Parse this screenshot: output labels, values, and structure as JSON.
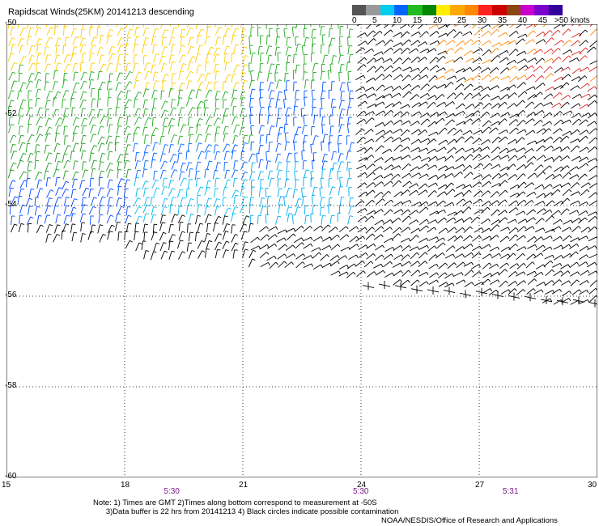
{
  "title": "Rapidscat Winds(25KM) 20141213 descending",
  "colorbar": {
    "colors": [
      "#555555",
      "#999999",
      "#00ccee",
      "#0066ff",
      "#22bb22",
      "#008800",
      "#ffee00",
      "#ffaa00",
      "#ff8800",
      "#ff2222",
      "#cc0000",
      "#8b4513",
      "#cc00cc",
      "#7a00cc",
      "#330099"
    ],
    "labels": [
      "0",
      "5",
      "10",
      "15",
      "20",
      "25",
      "30",
      "35",
      "40",
      "45",
      ">50 knots"
    ]
  },
  "map": {
    "lat_labels": [
      "-50",
      "-52",
      "-54",
      "-56",
      "-58",
      "-60"
    ],
    "lat_values": [
      -50,
      -52,
      -54,
      -56,
      -58,
      -60
    ],
    "lon_labels": [
      "15",
      "18",
      "21",
      "24",
      "27",
      "30"
    ],
    "lon_values": [
      15,
      18,
      21,
      24,
      27,
      30
    ],
    "lon_range": [
      15,
      30
    ],
    "lat_range": [
      -60,
      -50
    ],
    "time_labels": [
      "5:30",
      "5:30",
      "5:31"
    ],
    "time_lons": [
      19.2,
      24,
      27.8
    ],
    "grid": "dotted"
  },
  "notes": "Note: 1) Times are GMT 2)Times along bottom correspond to measurement at -50S\n      3)Data buffer is 22 hrs from 20141213 4) Black circles indicate possible contamination",
  "credit": "NOAA/NESDIS/Office of Research and Applications"
}
